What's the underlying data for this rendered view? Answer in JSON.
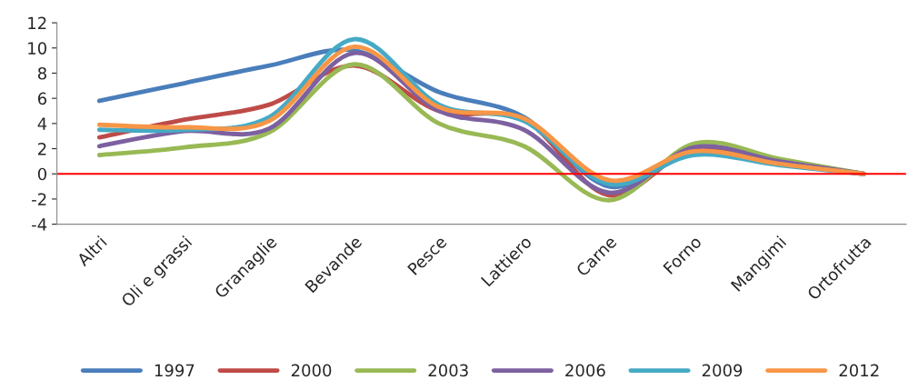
{
  "chart_data": {
    "type": "line",
    "categories": [
      "Altri",
      "Oli e grassi",
      "Granaglie",
      "Bevande",
      "Pesce",
      "Lattiero",
      "Carne",
      "Forno",
      "Mangimi",
      "Ortofrutta"
    ],
    "series": [
      {
        "name": "1997",
        "color": "#4a7ebb",
        "values": [
          5.8,
          7.2,
          8.6,
          9.8,
          6.5,
          4.5,
          -1.0,
          1.8,
          0.8,
          0
        ]
      },
      {
        "name": "2000",
        "color": "#be4b48",
        "values": [
          2.9,
          4.3,
          5.5,
          8.6,
          5.0,
          4.3,
          -1.7,
          2.0,
          1.0,
          0
        ]
      },
      {
        "name": "2003",
        "color": "#98b954",
        "values": [
          1.5,
          2.1,
          3.3,
          8.7,
          4.0,
          2.2,
          -2.1,
          2.4,
          1.2,
          0
        ]
      },
      {
        "name": "2006",
        "color": "#7d60a0",
        "values": [
          2.2,
          3.4,
          3.6,
          9.6,
          5.0,
          3.5,
          -1.5,
          2.1,
          1.0,
          0
        ]
      },
      {
        "name": "2009",
        "color": "#46aac5",
        "values": [
          3.5,
          3.5,
          4.5,
          10.7,
          5.5,
          4.2,
          -0.8,
          1.5,
          0.7,
          0
        ]
      },
      {
        "name": "2012",
        "color": "#f79646",
        "values": [
          3.9,
          3.7,
          4.2,
          10.1,
          5.3,
          4.4,
          -0.5,
          1.8,
          0.8,
          0
        ]
      }
    ],
    "ylim": [
      -4,
      12
    ],
    "yticks": [
      -4,
      -2,
      0,
      2,
      4,
      6,
      8,
      10,
      12
    ],
    "ref_lines": [
      {
        "axis": "y",
        "value": 0,
        "color": "#ff0000"
      }
    ],
    "grid": false,
    "legend": "bottom",
    "line_style": "solid",
    "marker": "none"
  }
}
